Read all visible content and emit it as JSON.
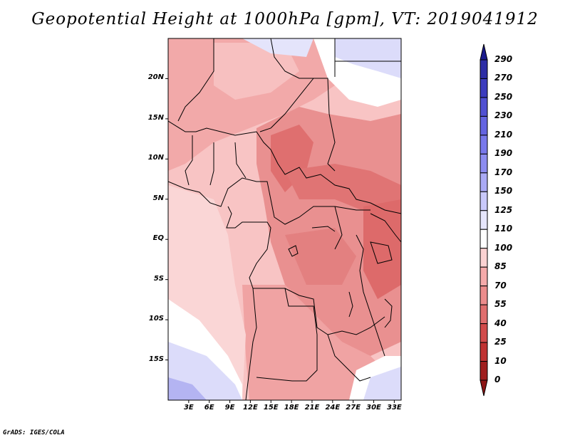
{
  "title": "Geopotential Height at 1000hPa [gpm], VT: 2019041912",
  "credit": "GrADS: IGES/COLA",
  "map": {
    "variable": "Geopotential Height",
    "level": "1000hPa",
    "units": "gpm",
    "valid_time": "2019041912",
    "lon_range": [
      0,
      34
    ],
    "lat_range": [
      -20,
      25
    ],
    "lat_ticks": [
      {
        "label": "20N",
        "value": 20
      },
      {
        "label": "15N",
        "value": 15
      },
      {
        "label": "10N",
        "value": 10
      },
      {
        "label": "5N",
        "value": 5
      },
      {
        "label": "EQ",
        "value": 0
      },
      {
        "label": "5S",
        "value": -5
      },
      {
        "label": "10S",
        "value": -10
      },
      {
        "label": "15S",
        "value": -15
      }
    ],
    "lon_ticks": [
      {
        "label": "3E",
        "value": 3
      },
      {
        "label": "6E",
        "value": 6
      },
      {
        "label": "9E",
        "value": 9
      },
      {
        "label": "12E",
        "value": 12
      },
      {
        "label": "15E",
        "value": 15
      },
      {
        "label": "18E",
        "value": 18
      },
      {
        "label": "21E",
        "value": 21
      },
      {
        "label": "24E",
        "value": 24
      },
      {
        "label": "27E",
        "value": 27
      },
      {
        "label": "30E",
        "value": 30
      },
      {
        "label": "33E",
        "value": 33
      }
    ]
  },
  "colorbar": {
    "levels": [
      "290",
      "270",
      "250",
      "230",
      "210",
      "190",
      "170",
      "150",
      "125",
      "110",
      "100",
      "85",
      "70",
      "55",
      "40",
      "25",
      "10",
      "0"
    ],
    "colors": [
      "#1a1a8c",
      "#2d2da6",
      "#3c3cbe",
      "#5050d2",
      "#6464e1",
      "#7878eb",
      "#8c8cf0",
      "#aaaaf5",
      "#c8c8fa",
      "#e6e6fc",
      "#ffffff",
      "#fbd2d2",
      "#f5aaaa",
      "#ec8c8c",
      "#e06e6e",
      "#d24b4b",
      "#c03232",
      "#a01e1e",
      "#8c1414"
    ]
  }
}
